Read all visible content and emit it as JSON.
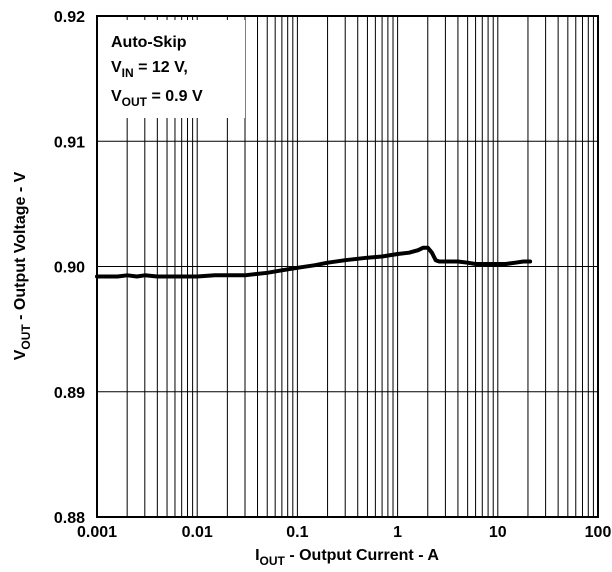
{
  "chart_data": {
    "type": "line",
    "x_scale": "log",
    "xlim": [
      0.001,
      100
    ],
    "ylim": [
      0.88,
      0.92
    ],
    "grid": true,
    "x_ticks": [
      "0.001",
      "0.01",
      "0.1",
      "1",
      "10",
      "100"
    ],
    "y_ticks": [
      "0.88",
      "0.89",
      "0.90",
      "0.91",
      "0.92"
    ],
    "xlabel": {
      "main": "I",
      "sub": "OUT",
      "rest": " - Output Current - A"
    },
    "ylabel": {
      "main": "V",
      "sub": "OUT",
      "rest": " - Output Voltage - V"
    },
    "annotation": {
      "line1": "Auto-Skip",
      "line2": {
        "main": "V",
        "sub": "IN",
        "rest": " = 12 V,"
      },
      "line3": {
        "main": "V",
        "sub": "OUT",
        "rest": " = 0.9 V"
      }
    },
    "series": [
      {
        "color": "#000000",
        "x": [
          0.001,
          0.0013,
          0.0016,
          0.002,
          0.0025,
          0.003,
          0.004,
          0.005,
          0.007,
          0.01,
          0.015,
          0.02,
          0.03,
          0.05,
          0.07,
          0.1,
          0.15,
          0.2,
          0.3,
          0.5,
          0.7,
          1.0,
          1.3,
          1.6,
          1.8,
          2.0,
          2.2,
          2.4,
          2.6,
          2.9,
          3.3,
          4,
          5,
          6,
          8,
          10,
          12,
          15,
          18,
          21
        ],
        "y": [
          0.8992,
          0.8992,
          0.8992,
          0.8993,
          0.8992,
          0.8993,
          0.8992,
          0.8992,
          0.8992,
          0.8992,
          0.8993,
          0.8993,
          0.8993,
          0.8995,
          0.8997,
          0.8999,
          0.9001,
          0.9003,
          0.9005,
          0.9007,
          0.9008,
          0.901,
          0.9011,
          0.9013,
          0.9015,
          0.9015,
          0.9011,
          0.9005,
          0.9004,
          0.9004,
          0.9004,
          0.9004,
          0.9003,
          0.9002,
          0.9002,
          0.9002,
          0.9002,
          0.9003,
          0.9004,
          0.9004
        ]
      }
    ]
  }
}
